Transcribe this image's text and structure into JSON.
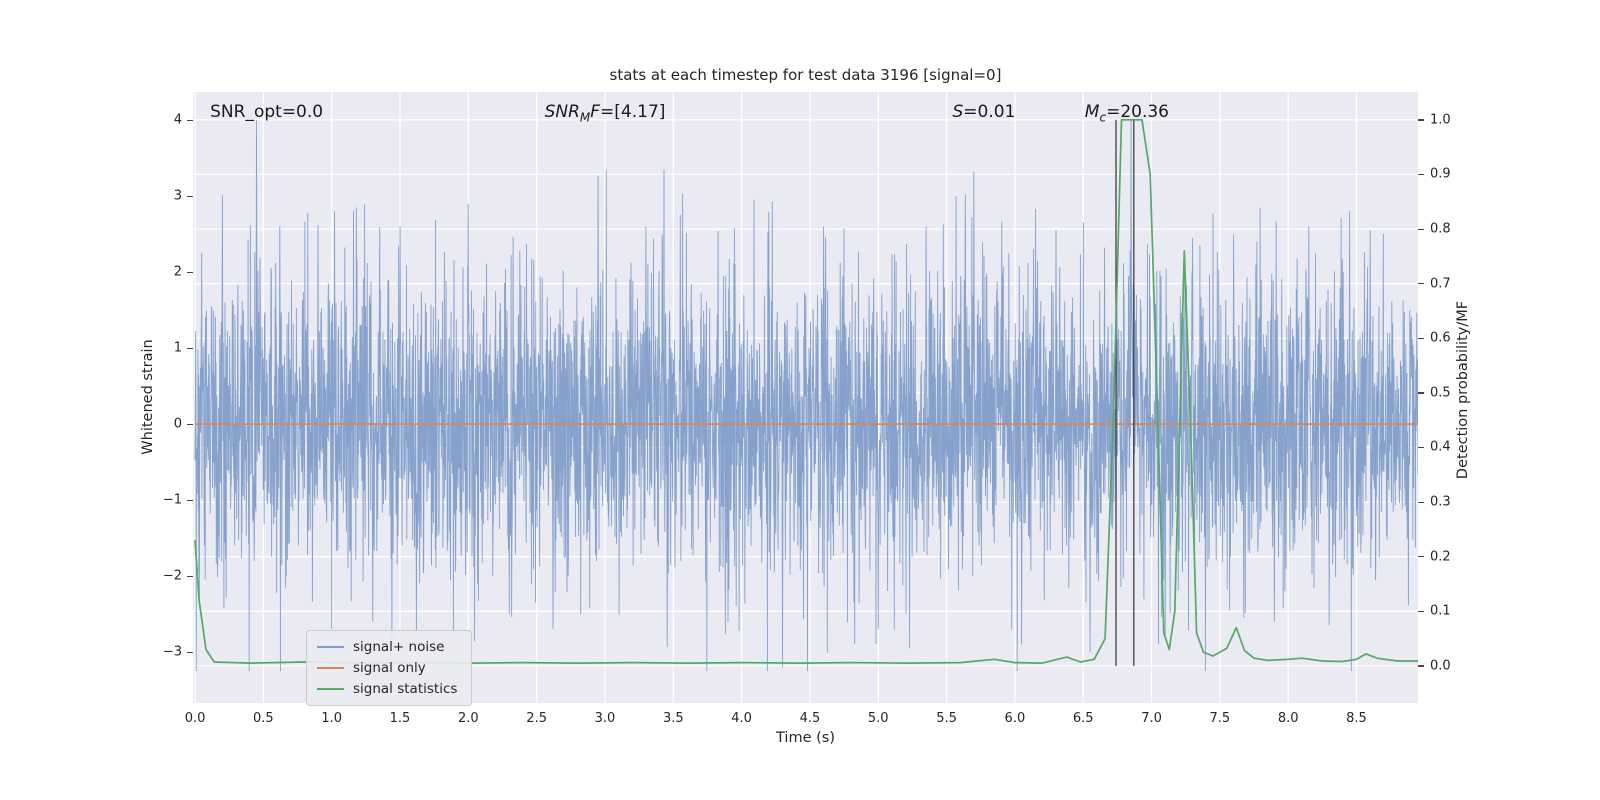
{
  "chart_data": {
    "type": "line",
    "title": "stats at each timestep for test data 3196 [signal=0]",
    "xlabel": "Time (s)",
    "ylabel_left": "Whitened strain",
    "ylabel_right": "Detection probability/MF",
    "background_color": "#eaeaf2",
    "grid": "white gridlines at right-axis ticks and x ticks",
    "legend_position": "lower left",
    "x_range": [
      -0.015,
      8.95
    ],
    "ylim_left": [
      -3.67,
      4.37
    ],
    "ylim_right": [
      -0.068,
      1.051
    ],
    "xticks": {
      "values": [
        0,
        0.5,
        1,
        1.5,
        2,
        2.5,
        3,
        3.5,
        4,
        4.5,
        5,
        5.5,
        6,
        6.5,
        7,
        7.5,
        8,
        8.5
      ],
      "labels": [
        "0.0",
        "0.5",
        "1.0",
        "1.5",
        "2.0",
        "2.5",
        "3.0",
        "3.5",
        "4.0",
        "4.5",
        "5.0",
        "5.5",
        "6.0",
        "6.5",
        "7.0",
        "7.5",
        "8.0",
        "8.5"
      ]
    },
    "yticks_left": {
      "values": [
        4,
        3,
        2,
        1,
        0,
        -1,
        -2,
        -3
      ],
      "labels": [
        "4",
        "3",
        "2",
        "1",
        "0",
        "−1",
        "−2",
        "−3"
      ]
    },
    "yticks_right": {
      "values": [
        1.0,
        0.9,
        0.8,
        0.7,
        0.6,
        0.5,
        0.4,
        0.3,
        0.2,
        0.1,
        0.0
      ],
      "labels": [
        "1.0",
        "0.9",
        "0.8",
        "0.7",
        "0.6",
        "0.5",
        "0.4",
        "0.3",
        "0.2",
        "0.1",
        "0.0"
      ]
    },
    "annotations": [
      {
        "x_frac": 0.014,
        "segments": [
          {
            "t": "SNR_opt=0.0",
            "i": 0
          }
        ]
      },
      {
        "x_frac": 0.287,
        "segments": [
          {
            "t": "SNR",
            "i": 1
          },
          {
            "t": "M",
            "i": 1,
            "sub": 1
          },
          {
            "t": "F",
            "i": 1
          },
          {
            "t": "=[4.17]",
            "i": 0
          }
        ]
      },
      {
        "x_frac": 0.62,
        "segments": [
          {
            "t": "S",
            "i": 1
          },
          {
            "t": "=0.01",
            "i": 0
          }
        ]
      },
      {
        "x_frac": 0.728,
        "segments": [
          {
            "t": "M",
            "i": 1
          },
          {
            "t": "c",
            "i": 1,
            "sub": 1
          },
          {
            "t": "=20.36",
            "i": 0
          }
        ]
      }
    ],
    "series": [
      {
        "name": "signal+ noise",
        "type": "noise",
        "axis": "left",
        "color": "#7f9dc9",
        "seed": 3196,
        "n_points": 4200,
        "mean": 0,
        "std": 1.0,
        "clip": [
          -3.25,
          3.35
        ],
        "peaks": [
          [
            0.2,
            3.02
          ],
          [
            0.45,
            4.0
          ],
          [
            0.62,
            2.6
          ],
          [
            0.9,
            2.62
          ],
          [
            1.02,
            2.8
          ],
          [
            1.18,
            2.85
          ],
          [
            1.3,
            -2.6
          ],
          [
            1.5,
            2.6
          ],
          [
            1.62,
            -2.75
          ],
          [
            2.0,
            2.9
          ],
          [
            2.3,
            -2.5
          ],
          [
            2.62,
            -2.7
          ],
          [
            2.95,
            3.27
          ],
          [
            3.3,
            2.6
          ],
          [
            3.55,
            2.75
          ],
          [
            3.9,
            -2.6
          ],
          [
            4.3,
            -3.2
          ],
          [
            4.6,
            2.6
          ],
          [
            5.0,
            -2.7
          ],
          [
            5.35,
            2.6
          ],
          [
            5.7,
            3.32
          ],
          [
            6.05,
            -2.9
          ],
          [
            6.3,
            2.55
          ],
          [
            6.55,
            -3.0
          ],
          [
            6.85,
            4.0
          ],
          [
            7.1,
            -2.8
          ],
          [
            7.3,
            2.45
          ],
          [
            7.6,
            2.5
          ],
          [
            7.9,
            -2.6
          ],
          [
            8.15,
            2.6
          ],
          [
            8.3,
            -2.65
          ],
          [
            8.45,
            2.8
          ],
          [
            8.6,
            2.55
          ]
        ]
      },
      {
        "name": "signal only",
        "type": "constant",
        "axis": "left",
        "color": "#dd8452",
        "value": 0.0
      },
      {
        "name": "signal statistics",
        "type": "line",
        "axis": "right",
        "color": "#55a868",
        "points": [
          [
            0,
            0.23
          ],
          [
            0.03,
            0.12
          ],
          [
            0.08,
            0.03
          ],
          [
            0.14,
            0.007
          ],
          [
            0.4,
            0.005
          ],
          [
            0.8,
            0.007
          ],
          [
            1.2,
            0.005
          ],
          [
            1.6,
            0.006
          ],
          [
            2,
            0.005
          ],
          [
            2.4,
            0.006
          ],
          [
            2.8,
            0.005
          ],
          [
            3.2,
            0.006
          ],
          [
            3.6,
            0.005
          ],
          [
            4,
            0.006
          ],
          [
            4.4,
            0.005
          ],
          [
            4.8,
            0.006
          ],
          [
            5.2,
            0.005
          ],
          [
            5.6,
            0.006
          ],
          [
            5.85,
            0.012
          ],
          [
            6,
            0.006
          ],
          [
            6.2,
            0.005
          ],
          [
            6.38,
            0.016
          ],
          [
            6.48,
            0.007
          ],
          [
            6.58,
            0.012
          ],
          [
            6.66,
            0.05
          ],
          [
            6.72,
            0.45
          ],
          [
            6.78,
            1.0
          ],
          [
            6.93,
            1.0
          ],
          [
            6.99,
            0.9
          ],
          [
            7.04,
            0.5
          ],
          [
            7.09,
            0.06
          ],
          [
            7.13,
            0.03
          ],
          [
            7.17,
            0.1
          ],
          [
            7.24,
            0.76
          ],
          [
            7.29,
            0.4
          ],
          [
            7.33,
            0.06
          ],
          [
            7.38,
            0.025
          ],
          [
            7.45,
            0.018
          ],
          [
            7.55,
            0.032
          ],
          [
            7.62,
            0.07
          ],
          [
            7.68,
            0.028
          ],
          [
            7.75,
            0.014
          ],
          [
            7.85,
            0.01
          ],
          [
            8,
            0.012
          ],
          [
            8.1,
            0.014
          ],
          [
            8.25,
            0.009
          ],
          [
            8.4,
            0.008
          ],
          [
            8.5,
            0.012
          ],
          [
            8.57,
            0.022
          ],
          [
            8.65,
            0.014
          ],
          [
            8.8,
            0.009
          ],
          [
            8.95,
            0.009
          ]
        ]
      }
    ],
    "vlines": [
      {
        "x": 6.74,
        "color": "#404040",
        "span_right_axis": [
          0.0,
          1.0
        ]
      },
      {
        "x": 6.87,
        "color": "#404040",
        "span_right_axis": [
          0.0,
          1.0
        ]
      }
    ]
  },
  "legend": {
    "items": [
      {
        "label": "signal+ noise",
        "color": "#7f9dc9"
      },
      {
        "label": "signal only",
        "color": "#dd8452"
      },
      {
        "label": "signal statistics",
        "color": "#55a868"
      }
    ]
  }
}
